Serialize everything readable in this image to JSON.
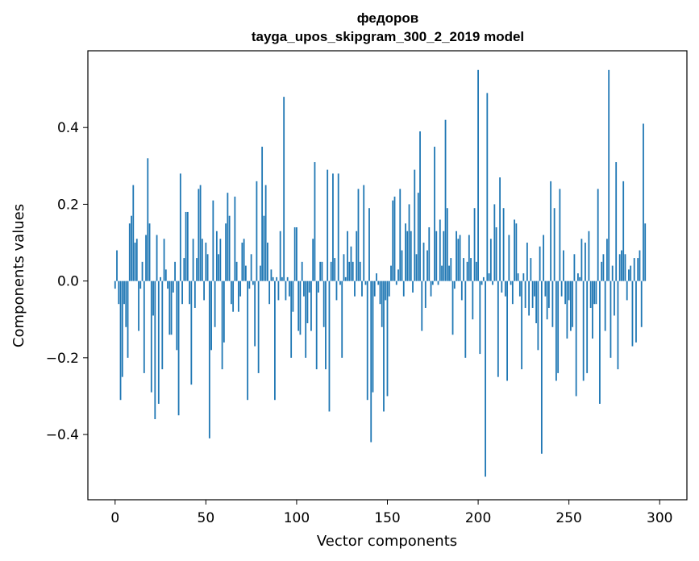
{
  "chart_data": {
    "type": "bar",
    "title": "федоров",
    "subtitle": "tayga_upos_skipgram_300_2_2019 model",
    "xlabel": "Vector components",
    "ylabel": "Components values",
    "xlim": [
      -15,
      315
    ],
    "ylim": [
      -0.57,
      0.6
    ],
    "xticks": [
      0,
      50,
      100,
      150,
      200,
      250,
      300
    ],
    "xtick_labels": [
      "0",
      "50",
      "100",
      "150",
      "200",
      "250",
      "300"
    ],
    "yticks": [
      -0.4,
      -0.2,
      0.0,
      0.2,
      0.4
    ],
    "ytick_labels": [
      "−0.4",
      "−0.2",
      "0.0",
      "0.2",
      "0.4"
    ],
    "grid": false,
    "bar_color": "#1f77b4",
    "x_start": 0,
    "values": [
      -0.02,
      0.08,
      -0.06,
      -0.31,
      -0.25,
      -0.06,
      -0.12,
      -0.2,
      0.15,
      0.17,
      0.25,
      0.1,
      0.11,
      -0.13,
      -0.02,
      0.05,
      -0.24,
      0.12,
      0.32,
      0.15,
      -0.29,
      -0.09,
      -0.36,
      0.12,
      -0.32,
      0.01,
      -0.23,
      0.11,
      0.03,
      -0.02,
      -0.14,
      -0.14,
      -0.03,
      0.05,
      -0.18,
      -0.35,
      0.28,
      -0.06,
      0.06,
      0.18,
      0.18,
      -0.06,
      -0.27,
      0.11,
      -0.07,
      0.06,
      0.24,
      0.25,
      0.11,
      -0.05,
      0.1,
      0.07,
      -0.41,
      -0.18,
      0.21,
      -0.12,
      0.13,
      0.07,
      0.11,
      -0.23,
      -0.16,
      0.15,
      0.23,
      0.17,
      -0.06,
      -0.08,
      0.22,
      0.05,
      -0.08,
      -0.04,
      0.1,
      0.11,
      0.04,
      -0.31,
      -0.02,
      0.07,
      -0.01,
      -0.17,
      0.26,
      -0.24,
      0.04,
      0.35,
      0.17,
      0.25,
      0.1,
      -0.06,
      0.03,
      0.01,
      -0.31,
      0.01,
      -0.05,
      0.13,
      0.01,
      0.48,
      -0.05,
      0.01,
      -0.04,
      -0.2,
      -0.08,
      0.14,
      0.14,
      -0.13,
      -0.14,
      0.05,
      -0.04,
      -0.2,
      -0.11,
      -0.03,
      -0.13,
      0.11,
      0.31,
      -0.23,
      -0.03,
      0.05,
      0.05,
      -0.12,
      -0.23,
      0.29,
      -0.34,
      0.05,
      0.28,
      0.06,
      -0.05,
      0.28,
      -0.01,
      -0.2,
      0.07,
      0.01,
      0.13,
      0.05,
      0.09,
      0.05,
      -0.04,
      0.13,
      0.24,
      0.05,
      -0.04,
      0.25,
      -0.01,
      -0.31,
      0.19,
      -0.42,
      -0.29,
      -0.04,
      0.02,
      -0.01,
      -0.06,
      -0.12,
      -0.34,
      -0.05,
      -0.3,
      -0.04,
      0.04,
      0.21,
      0.22,
      -0.01,
      0.03,
      0.24,
      0.08,
      -0.04,
      0.15,
      0.13,
      0.2,
      0.13,
      -0.03,
      0.29,
      0.07,
      0.23,
      0.39,
      -0.13,
      0.1,
      -0.07,
      0.08,
      0.14,
      -0.04,
      -0.01,
      0.35,
      0.13,
      -0.01,
      0.16,
      0.04,
      0.13,
      0.42,
      0.19,
      0.04,
      0.06,
      -0.14,
      -0.02,
      0.13,
      0.11,
      0.12,
      -0.05,
      0.06,
      -0.2,
      0.05,
      0.12,
      0.06,
      -0.1,
      0.19,
      0.05,
      0.55,
      -0.19,
      -0.01,
      0.01,
      -0.51,
      0.49,
      0.02,
      0.11,
      -0.01,
      0.2,
      0.14,
      -0.25,
      0.27,
      -0.03,
      0.19,
      -0.04,
      -0.26,
      0.12,
      -0.01,
      -0.06,
      0.16,
      0.15,
      0.02,
      -0.04,
      -0.23,
      0.02,
      -0.07,
      0.1,
      -0.09,
      0.06,
      -0.07,
      -0.04,
      -0.11,
      -0.18,
      0.09,
      -0.45,
      0.12,
      -0.04,
      -0.1,
      -0.07,
      0.26,
      -0.12,
      0.19,
      -0.26,
      -0.24,
      0.24,
      -0.04,
      0.08,
      -0.06,
      -0.15,
      -0.05,
      -0.13,
      -0.12,
      0.07,
      -0.3,
      0.02,
      0.01,
      0.11,
      -0.26,
      0.1,
      -0.24,
      0.13,
      -0.07,
      -0.15,
      -0.06,
      -0.06,
      0.24,
      -0.32,
      0.05,
      0.07,
      -0.13,
      0.11,
      0.55,
      -0.2,
      0.04,
      -0.09,
      0.31,
      -0.23,
      0.07,
      0.08,
      0.26,
      0.07,
      -0.05,
      0.03,
      0.04,
      -0.17,
      0.06,
      -0.16,
      0.06,
      0.08,
      -0.12,
      0.41,
      0.15
    ]
  }
}
